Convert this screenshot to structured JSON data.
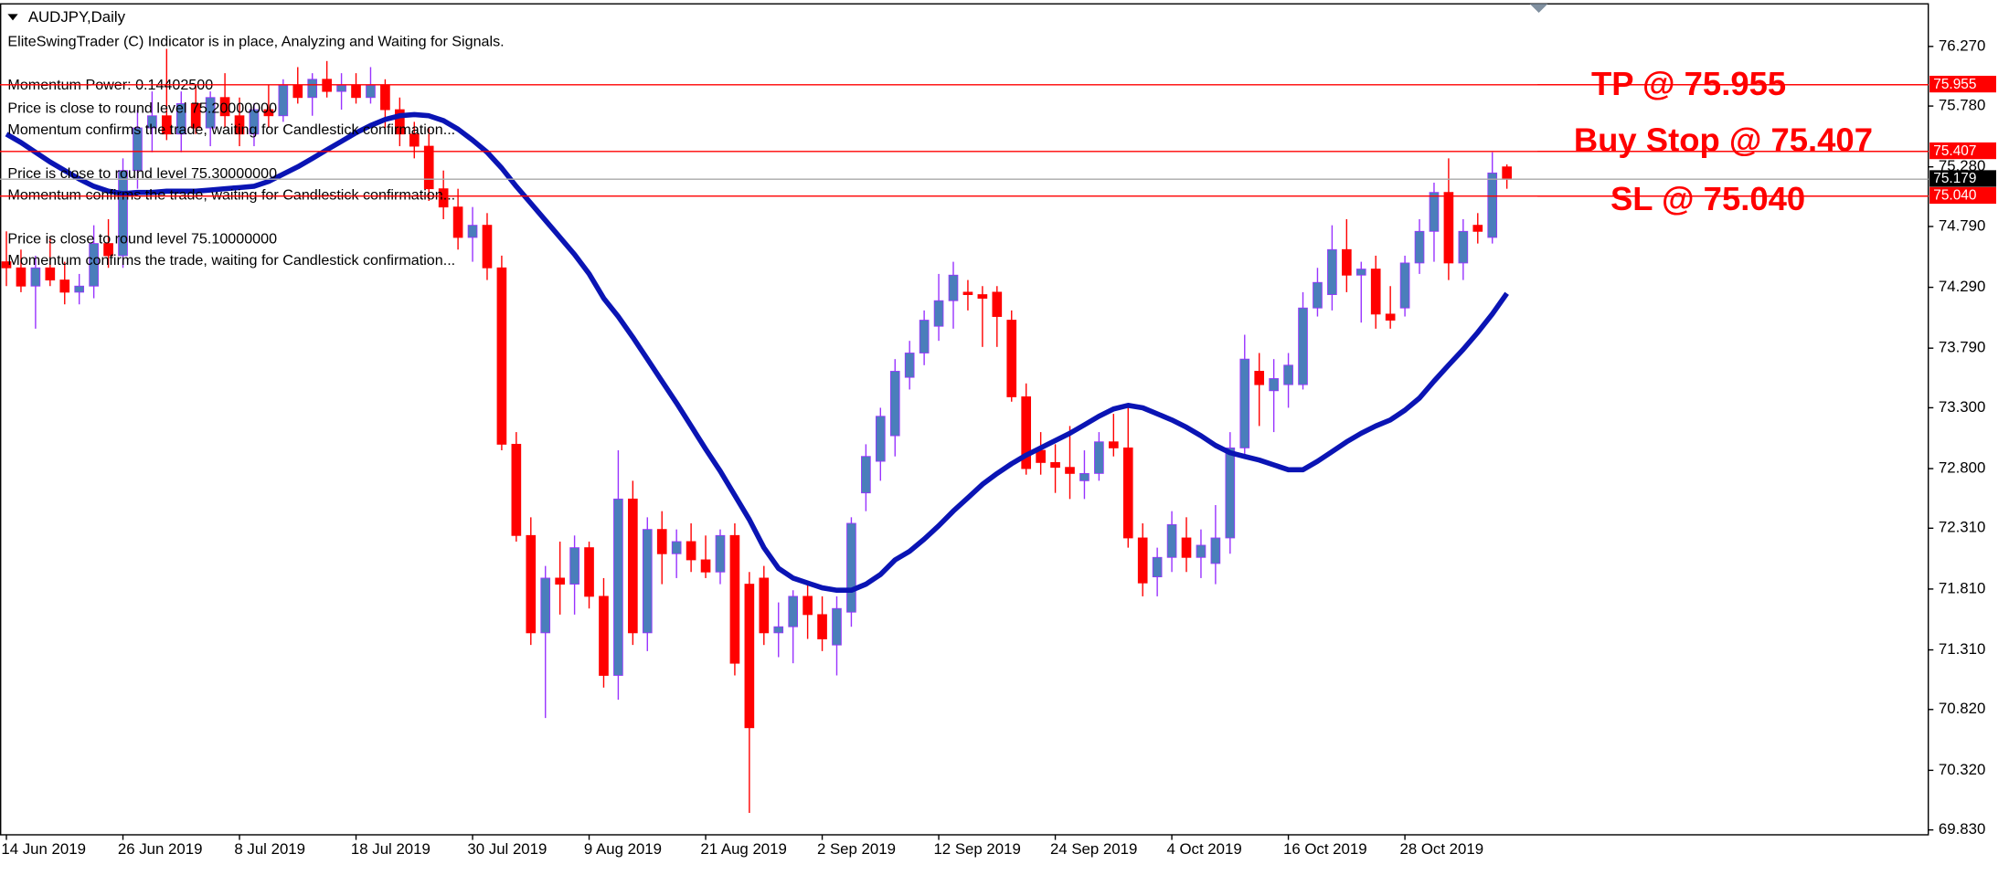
{
  "chart_data": {
    "type": "candlestick",
    "title": "AUDJPY,Daily",
    "annotations": [
      "EliteSwingTrader (C) Indicator is in place, Analyzing and Waiting for Signals.",
      "Momentum Power: 0.14402500",
      "Price is close to round level 75.20000000",
      "Momentum confirms the trade, waiting for Candlestick confirmation...",
      "Price is close to round level 75.30000000",
      "Momentum confirms the trade, waiting for Candlestick confirmation...",
      "Price is close to round level 75.10000000",
      "Momentum confirms the trade, waiting for Candlestick confirmation..."
    ],
    "categories": [
      "14 Jun 2019",
      null,
      null,
      null,
      null,
      null,
      null,
      null,
      "26 Jun 2019",
      null,
      null,
      null,
      null,
      null,
      null,
      null,
      "8 Jul 2019",
      null,
      null,
      null,
      null,
      null,
      null,
      null,
      "18 Jul 2019",
      null,
      null,
      null,
      null,
      null,
      null,
      null,
      "30 Jul 2019",
      null,
      null,
      null,
      null,
      null,
      null,
      null,
      "9 Aug 2019",
      null,
      null,
      null,
      null,
      null,
      null,
      null,
      "21 Aug 2019",
      null,
      null,
      null,
      null,
      null,
      null,
      null,
      "2 Sep 2019",
      null,
      null,
      null,
      null,
      null,
      null,
      null,
      "12 Sep 2019",
      null,
      null,
      null,
      null,
      null,
      null,
      null,
      "24 Sep 2019",
      null,
      null,
      null,
      null,
      null,
      null,
      null,
      "4 Oct 2019",
      null,
      null,
      null,
      null,
      null,
      null,
      null,
      "16 Oct 2019",
      null,
      null,
      null,
      null,
      null,
      null,
      null,
      "28 Oct 2019",
      null,
      null,
      null,
      null,
      null,
      null,
      null
    ],
    "open": [
      74.5,
      74.45,
      74.3,
      74.45,
      74.35,
      74.25,
      74.3,
      74.65,
      74.55,
      75.25,
      75.6,
      75.7,
      75.55,
      75.8,
      75.6,
      75.85,
      75.7,
      75.55,
      75.75,
      75.7,
      75.95,
      75.85,
      76.0,
      75.9,
      75.95,
      75.85,
      75.95,
      75.75,
      75.55,
      75.45,
      75.1,
      74.95,
      74.7,
      74.8,
      74.45,
      73.0,
      72.25,
      71.45,
      71.9,
      71.85,
      72.15,
      71.75,
      71.1,
      72.55,
      71.45,
      72.3,
      72.1,
      72.2,
      72.05,
      71.95,
      72.25,
      71.85,
      71.9,
      71.45,
      71.5,
      71.75,
      71.6,
      71.35,
      71.62,
      72.6,
      72.86,
      73.07,
      73.55,
      73.75,
      73.97,
      74.18,
      74.25,
      74.23,
      74.25,
      74.02,
      73.39,
      72.95,
      72.85,
      72.81,
      72.7,
      72.76,
      73.02,
      72.97,
      72.23,
      71.91,
      72.07,
      72.23,
      72.07,
      72.02,
      72.23,
      72.97,
      73.6,
      73.44,
      73.49,
      73.49,
      74.12,
      74.23,
      74.6,
      74.39,
      74.44,
      74.07,
      74.12,
      74.49,
      74.75,
      75.07,
      74.49,
      74.8,
      74.7,
      75.28
    ],
    "high": [
      74.75,
      74.6,
      74.55,
      74.7,
      74.5,
      74.4,
      74.8,
      74.85,
      75.35,
      75.75,
      75.9,
      76.25,
      75.9,
      75.95,
      75.9,
      76.05,
      75.85,
      75.8,
      75.95,
      76.0,
      76.1,
      76.05,
      76.15,
      76.05,
      76.05,
      76.1,
      76.0,
      75.85,
      75.65,
      75.6,
      75.25,
      75.1,
      74.95,
      74.9,
      74.55,
      73.1,
      72.4,
      72.0,
      72.2,
      72.25,
      72.2,
      71.9,
      72.95,
      72.7,
      72.4,
      72.45,
      72.3,
      72.35,
      72.25,
      72.3,
      72.35,
      71.95,
      72.0,
      71.7,
      71.8,
      71.85,
      71.75,
      71.75,
      72.4,
      73.0,
      73.3,
      73.7,
      73.85,
      74.1,
      74.4,
      74.5,
      74.35,
      74.3,
      74.3,
      74.1,
      73.5,
      73.1,
      73.0,
      73.15,
      72.95,
      73.1,
      73.25,
      73.3,
      72.35,
      72.15,
      72.45,
      72.4,
      72.3,
      72.5,
      73.1,
      73.9,
      73.75,
      73.7,
      73.75,
      74.25,
      74.45,
      74.8,
      74.85,
      74.5,
      74.55,
      74.3,
      74.55,
      74.85,
      75.15,
      75.35,
      74.85,
      74.9,
      75.4,
      75.3
    ],
    "low": [
      74.3,
      74.25,
      73.95,
      74.3,
      74.15,
      74.15,
      74.2,
      74.45,
      74.45,
      75.1,
      75.4,
      75.5,
      75.4,
      75.55,
      75.45,
      75.6,
      75.45,
      75.45,
      75.6,
      75.65,
      75.8,
      75.7,
      75.85,
      75.75,
      75.8,
      75.8,
      75.6,
      75.45,
      75.35,
      75.0,
      74.85,
      74.6,
      74.5,
      74.35,
      72.95,
      72.2,
      71.35,
      70.75,
      71.6,
      71.6,
      71.65,
      71.0,
      70.9,
      71.35,
      71.3,
      71.85,
      71.9,
      71.95,
      71.9,
      71.85,
      71.1,
      69.97,
      71.35,
      71.25,
      71.2,
      71.4,
      71.3,
      71.1,
      71.5,
      72.45,
      72.7,
      72.9,
      73.45,
      73.65,
      73.85,
      73.95,
      74.1,
      73.8,
      73.8,
      73.35,
      72.75,
      72.75,
      72.6,
      72.55,
      72.55,
      72.7,
      72.9,
      72.15,
      71.75,
      71.75,
      71.95,
      71.95,
      71.9,
      71.85,
      72.1,
      72.9,
      73.15,
      73.1,
      73.3,
      73.45,
      74.05,
      74.1,
      74.25,
      74.0,
      73.95,
      73.95,
      74.05,
      74.4,
      74.5,
      74.35,
      74.35,
      74.65,
      74.65,
      75.1
    ],
    "close": [
      74.45,
      74.3,
      74.45,
      74.35,
      74.25,
      74.3,
      74.65,
      74.55,
      75.25,
      75.6,
      75.7,
      75.55,
      75.8,
      75.6,
      75.85,
      75.7,
      75.55,
      75.75,
      75.7,
      75.95,
      75.85,
      76.0,
      75.9,
      75.95,
      75.85,
      75.95,
      75.75,
      75.55,
      75.45,
      75.1,
      74.95,
      74.7,
      74.8,
      74.45,
      73.0,
      72.25,
      71.45,
      71.9,
      71.85,
      72.15,
      71.75,
      71.1,
      72.55,
      71.45,
      72.3,
      72.1,
      72.2,
      72.05,
      71.95,
      72.25,
      71.2,
      70.67,
      71.45,
      71.5,
      71.75,
      71.6,
      71.4,
      71.65,
      72.35,
      72.9,
      73.23,
      73.6,
      73.75,
      74.02,
      74.18,
      74.39,
      74.23,
      74.2,
      74.05,
      73.39,
      72.8,
      72.85,
      72.81,
      72.76,
      72.76,
      73.02,
      72.97,
      72.23,
      71.86,
      72.07,
      72.34,
      72.07,
      72.17,
      72.23,
      72.97,
      73.7,
      73.49,
      73.54,
      73.65,
      74.12,
      74.33,
      74.6,
      74.39,
      74.44,
      74.07,
      74.02,
      74.49,
      74.75,
      75.07,
      74.49,
      74.75,
      74.75,
      75.23,
      75.179
    ],
    "up_color": "#4a7ebb",
    "up_wick_color": "#9933ff",
    "down_color": "#ff0000",
    "moving_average": {
      "color": "#0a14b4",
      "values": [
        75.55,
        75.48,
        75.4,
        75.32,
        75.25,
        75.18,
        75.12,
        75.08,
        75.06,
        75.07,
        75.07,
        75.08,
        75.08,
        75.08,
        75.09,
        75.1,
        75.11,
        75.12,
        75.16,
        75.22,
        75.28,
        75.35,
        75.42,
        75.49,
        75.56,
        75.62,
        75.67,
        75.7,
        75.71,
        75.7,
        75.66,
        75.59,
        75.5,
        75.4,
        75.27,
        75.12,
        74.98,
        74.84,
        74.7,
        74.56,
        74.4,
        74.2,
        74.05,
        73.88,
        73.7,
        73.52,
        73.34,
        73.15,
        72.96,
        72.78,
        72.58,
        72.38,
        72.15,
        71.98,
        71.9,
        71.86,
        71.82,
        71.8,
        71.8,
        71.85,
        71.93,
        72.05,
        72.12,
        72.22,
        72.33,
        72.45,
        72.56,
        72.67,
        72.76,
        72.84,
        72.91,
        72.97,
        73.03,
        73.09,
        73.16,
        73.23,
        73.29,
        73.32,
        73.3,
        73.25,
        73.2,
        73.14,
        73.07,
        72.99,
        72.93,
        72.9,
        72.87,
        72.83,
        72.79,
        72.79,
        72.86,
        72.94,
        73.02,
        73.09,
        73.15,
        73.2,
        73.28,
        73.38,
        73.52,
        73.65,
        73.78,
        73.92,
        74.07,
        74.24
      ]
    },
    "ylim": [
      69.79,
      76.62
    ],
    "yticks": [
      {
        "value": 76.27,
        "label": "76.270"
      },
      {
        "value": 75.78,
        "label": "75.780"
      },
      {
        "value": 75.28,
        "label": "75.280"
      },
      {
        "value": 74.79,
        "label": "74.790"
      },
      {
        "value": 74.29,
        "label": "74.290"
      },
      {
        "value": 73.79,
        "label": "73.790"
      },
      {
        "value": 73.3,
        "label": "73.300"
      },
      {
        "value": 72.8,
        "label": "72.800"
      },
      {
        "value": 72.31,
        "label": "72.310"
      },
      {
        "value": 71.81,
        "label": "71.810"
      },
      {
        "value": 71.31,
        "label": "71.310"
      },
      {
        "value": 70.82,
        "label": "70.820"
      },
      {
        "value": 70.32,
        "label": "70.320"
      },
      {
        "value": 69.83,
        "label": "69.830"
      }
    ],
    "levels": [
      {
        "name": "TP @ 75.955",
        "price": {
          "value": 75.955,
          "label": "75.955"
        },
        "color": "#ff0000"
      },
      {
        "name": "Buy Stop @ 75.407",
        "price": {
          "value": 75.407,
          "label": "75.407"
        },
        "color": "#ff0000"
      },
      {
        "name": "SL @ 75.040",
        "price": {
          "value": 75.04,
          "label": "75.040"
        },
        "color": "#ff0000"
      }
    ],
    "current_price": {
      "value": 75.179,
      "label": "75.179"
    },
    "grid": false
  }
}
